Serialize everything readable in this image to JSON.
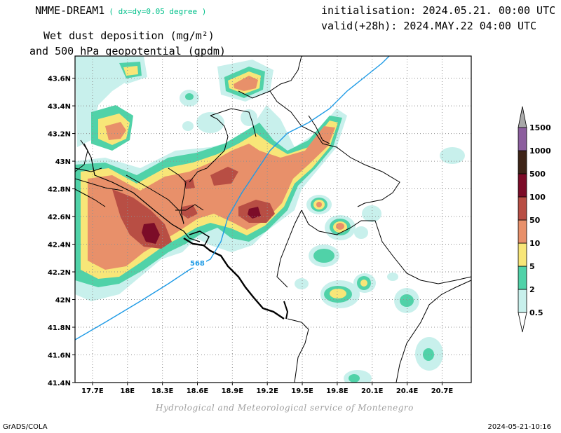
{
  "header": {
    "model_name": "NMME-DREAM1",
    "resolution": "( dx=dy=0.05 degree )",
    "product_line1": "Wet dust deposition (mg/m²)",
    "product_line2": "and 500 hPa geopotential (gpdm)",
    "initialisation": "initialisation: 2024.05.21. 00:00 UTC",
    "valid": "valid(+28h): 2024.MAY.22 04:00 UTC"
  },
  "map": {
    "lon_ticks": [
      "17.7E",
      "18E",
      "18.3E",
      "18.6E",
      "18.9E",
      "19.2E",
      "19.5E",
      "19.8E",
      "20.1E",
      "20.4E",
      "20.7E"
    ],
    "lat_ticks": [
      "43.6N",
      "43.4N",
      "43.2N",
      "43N",
      "42.8N",
      "42.6N",
      "42.4N",
      "42.2N",
      "42N",
      "41.8N",
      "41.6N",
      "41.4N"
    ],
    "contour_label": "568",
    "contour_color": "#1e9be6",
    "grid": "dotted",
    "lon_range": [
      17.55,
      20.95
    ],
    "lat_range": [
      41.4,
      43.76
    ]
  },
  "legend": {
    "levels": [
      "0.5",
      "2",
      "5",
      "10",
      "50",
      "100",
      "500",
      "1000",
      "1500"
    ],
    "colors": [
      "#c8f0ec",
      "#50d2a8",
      "#f8e678",
      "#e8906a",
      "#b84e44",
      "#7c0c28",
      "#3e2418",
      "#8c5e9e",
      "#a8a8a8"
    ]
  },
  "credit": "Hydrological and Meteorological service of Montenegro",
  "footer": {
    "software": "GrADS/COLA",
    "timestamp": "2024-05-21-10:16"
  }
}
